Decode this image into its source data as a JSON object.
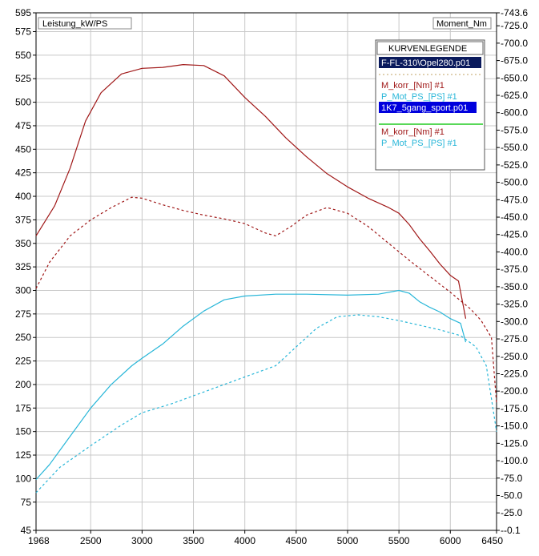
{
  "chart_data": {
    "type": "line",
    "left_axis_label": "Leistung_kW/PS",
    "right_axis_label": "Moment_Nm",
    "x_ticks": [
      "1968",
      "2500",
      "3000",
      "3500",
      "4000",
      "4500",
      "5000",
      "5500",
      "6000",
      "6450"
    ],
    "x_tick_values": [
      1968,
      2500,
      3000,
      3500,
      4000,
      4500,
      5000,
      5500,
      6000,
      6450
    ],
    "xlim": [
      1968,
      6450
    ],
    "left_ticks": [
      "595",
      "575",
      "550",
      "525",
      "500",
      "475",
      "450",
      "425",
      "400",
      "375",
      "350",
      "325",
      "300",
      "275",
      "250",
      "225",
      "200",
      "175",
      "150",
      "125",
      "100",
      "75",
      "45"
    ],
    "left_tick_values": [
      595,
      575,
      550,
      525,
      500,
      475,
      450,
      425,
      400,
      375,
      350,
      325,
      300,
      275,
      250,
      225,
      200,
      175,
      150,
      125,
      100,
      75,
      45
    ],
    "left_ylim": [
      45,
      595
    ],
    "right_ticks": [
      "743.6",
      "725.0",
      "700.0",
      "675.0",
      "650.0",
      "625.0",
      "600.0",
      "575.0",
      "550.0",
      "525.0",
      "500.0",
      "475.0",
      "450.0",
      "425.0",
      "400.0",
      "375.0",
      "350.0",
      "325.0",
      "300.0",
      "275.0",
      "250.0",
      "225.0",
      "200.0",
      "175.0",
      "150.0",
      "125.0",
      "100.0",
      "75.0",
      "50.0",
      "25.0",
      "-0.1"
    ],
    "right_tick_values": [
      743.6,
      725,
      700,
      675,
      650,
      625,
      600,
      575,
      550,
      525,
      500,
      475,
      450,
      425,
      400,
      375,
      350,
      325,
      300,
      275,
      250,
      225,
      200,
      175,
      150,
      125,
      100,
      75,
      50,
      25,
      -0.1
    ],
    "right_ylim": [
      -0.1,
      743.6
    ],
    "grid": true,
    "legend_position": "top-right",
    "legend": {
      "title": "KURVENLEGENDE",
      "file1": "F-FL-310\\Opel280.p01",
      "file2": "1K7_5gang_sport.p01",
      "items1": [
        "M_korr_[Nm] #1",
        "P_Mot_PS_[PS] #1"
      ],
      "items2": [
        "M_korr_[Nm] #1",
        "P_Mot_PS_[PS] #1"
      ]
    },
    "series": [
      {
        "name": "M_korr_[Nm] #1",
        "file": "1K7_5gang_sport.p01",
        "axis": "left",
        "color": "#a01818",
        "dash": false,
        "points": [
          [
            1968,
            358
          ],
          [
            2150,
            390
          ],
          [
            2300,
            430
          ],
          [
            2450,
            480
          ],
          [
            2600,
            510
          ],
          [
            2800,
            530
          ],
          [
            3000,
            536
          ],
          [
            3200,
            537
          ],
          [
            3400,
            540
          ],
          [
            3600,
            539
          ],
          [
            3800,
            528
          ],
          [
            4000,
            505
          ],
          [
            4200,
            485
          ],
          [
            4400,
            462
          ],
          [
            4600,
            442
          ],
          [
            4800,
            424
          ],
          [
            5000,
            410
          ],
          [
            5200,
            398
          ],
          [
            5400,
            388
          ],
          [
            5500,
            382
          ],
          [
            5600,
            370
          ],
          [
            5700,
            355
          ],
          [
            5800,
            342
          ],
          [
            5900,
            328
          ],
          [
            6000,
            316
          ],
          [
            6080,
            310
          ],
          [
            6150,
            270
          ]
        ]
      },
      {
        "name": "M_korr_[Nm] #1",
        "file": "F-FL-310\\Opel280.p01",
        "axis": "left",
        "color": "#a01818",
        "dash": true,
        "points": [
          [
            1968,
            302
          ],
          [
            2100,
            330
          ],
          [
            2300,
            358
          ],
          [
            2500,
            375
          ],
          [
            2700,
            388
          ],
          [
            2900,
            399
          ],
          [
            3000,
            398
          ],
          [
            3200,
            391
          ],
          [
            3400,
            385
          ],
          [
            3600,
            380
          ],
          [
            3800,
            376
          ],
          [
            4000,
            371
          ],
          [
            4200,
            361
          ],
          [
            4300,
            358
          ],
          [
            4450,
            368
          ],
          [
            4600,
            380
          ],
          [
            4800,
            388
          ],
          [
            5000,
            382
          ],
          [
            5200,
            368
          ],
          [
            5400,
            350
          ],
          [
            5600,
            332
          ],
          [
            5800,
            315
          ],
          [
            6000,
            298
          ],
          [
            6200,
            280
          ],
          [
            6300,
            268
          ],
          [
            6400,
            250
          ],
          [
            6450,
            180
          ]
        ]
      },
      {
        "name": "P_Mot_PS_[PS] #1",
        "file": "1K7_5gang_sport.p01",
        "axis": "left",
        "color": "#27b6d8",
        "dash": false,
        "points": [
          [
            1968,
            99
          ],
          [
            2100,
            115
          ],
          [
            2300,
            145
          ],
          [
            2500,
            175
          ],
          [
            2700,
            200
          ],
          [
            2900,
            220
          ],
          [
            3000,
            228
          ],
          [
            3200,
            243
          ],
          [
            3400,
            262
          ],
          [
            3600,
            278
          ],
          [
            3800,
            290
          ],
          [
            4000,
            294
          ],
          [
            4300,
            296
          ],
          [
            4600,
            296
          ],
          [
            5000,
            295
          ],
          [
            5300,
            296
          ],
          [
            5500,
            300
          ],
          [
            5600,
            297
          ],
          [
            5700,
            288
          ],
          [
            5800,
            282
          ],
          [
            5900,
            277
          ],
          [
            6000,
            270
          ],
          [
            6100,
            265
          ],
          [
            6150,
            245
          ]
        ]
      },
      {
        "name": "P_Mot_PS_[PS] #1",
        "file": "F-FL-310\\Opel280.p01",
        "axis": "left",
        "color": "#27b6d8",
        "dash": true,
        "points": [
          [
            1968,
            85
          ],
          [
            2200,
            112
          ],
          [
            2500,
            135
          ],
          [
            2800,
            157
          ],
          [
            3000,
            170
          ],
          [
            3300,
            180
          ],
          [
            3600,
            192
          ],
          [
            4000,
            208
          ],
          [
            4300,
            220
          ],
          [
            4500,
            240
          ],
          [
            4700,
            260
          ],
          [
            4900,
            272
          ],
          [
            5100,
            274
          ],
          [
            5300,
            272
          ],
          [
            5500,
            268
          ],
          [
            5700,
            263
          ],
          [
            5900,
            258
          ],
          [
            6100,
            252
          ],
          [
            6250,
            240
          ],
          [
            6350,
            220
          ],
          [
            6450,
            150
          ]
        ]
      }
    ]
  }
}
